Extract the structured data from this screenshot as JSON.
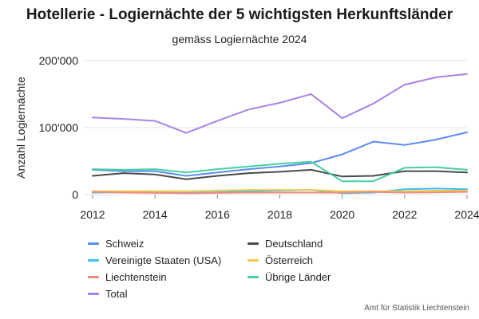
{
  "title": "Hotellerie - Logiernächte der 5 wichtigsten Herkunftsländer",
  "subtitle": "gemäss Logiernächte 2024",
  "source": "Amt für Statistik Liechtenstein",
  "chart_data": {
    "type": "line",
    "title": "Hotellerie - Logiernächte der 5 wichtigsten Herkunftsländer",
    "subtitle": "gemäss Logiernächte 2024",
    "xlabel": "",
    "ylabel": "Anzahl Logiernächte",
    "xlim": [
      2012,
      2024
    ],
    "ylim": [
      0,
      200000
    ],
    "xticks": [
      2012,
      2014,
      2016,
      2018,
      2020,
      2022,
      2024
    ],
    "xtick_labels": [
      "2012",
      "2014",
      "2016",
      "2018",
      "2020",
      "2022",
      "2024"
    ],
    "yticks": [
      0,
      100000,
      200000
    ],
    "ytick_labels": [
      "0",
      "100'000",
      "200'000"
    ],
    "grid": true,
    "legend_position": "bottom",
    "x": [
      2012,
      2013,
      2014,
      2015,
      2016,
      2017,
      2018,
      2019,
      2020,
      2021,
      2022,
      2023,
      2024
    ],
    "series": [
      {
        "name": "Schweiz",
        "color": "#5b8def",
        "values": [
          37000,
          35000,
          35000,
          28000,
          33000,
          38000,
          42000,
          47000,
          60000,
          79000,
          74000,
          82000,
          93000
        ]
      },
      {
        "name": "Deutschland",
        "color": "#4a4a4a",
        "values": [
          28000,
          32000,
          30000,
          23000,
          28000,
          32000,
          34000,
          37000,
          27000,
          28000,
          35000,
          35000,
          33000
        ]
      },
      {
        "name": "Vereinigte Staaten (USA)",
        "color": "#3ec0ea",
        "values": [
          3000,
          3500,
          3000,
          2500,
          3500,
          5000,
          6000,
          7000,
          2000,
          3000,
          8000,
          9000,
          8000
        ]
      },
      {
        "name": "Österreich",
        "color": "#f2c84b",
        "values": [
          5000,
          5000,
          5000,
          5000,
          6000,
          7000,
          7000,
          7000,
          5000,
          5000,
          5000,
          6000,
          6000
        ]
      },
      {
        "name": "Liechtenstein",
        "color": "#f08a80",
        "values": [
          4000,
          3000,
          2500,
          2000,
          2500,
          3000,
          3000,
          3000,
          3000,
          4000,
          3000,
          3500,
          4000
        ]
      },
      {
        "name": "Übrige Länder",
        "color": "#47cfa2",
        "values": [
          38000,
          37000,
          38000,
          33000,
          38000,
          42000,
          46000,
          49000,
          20000,
          20000,
          40000,
          41000,
          37000
        ]
      },
      {
        "name": "Total",
        "color": "#a982e6",
        "values": [
          115000,
          113000,
          110000,
          92000,
          110000,
          127000,
          137000,
          150000,
          114000,
          136000,
          164000,
          175000,
          180000
        ]
      }
    ]
  }
}
